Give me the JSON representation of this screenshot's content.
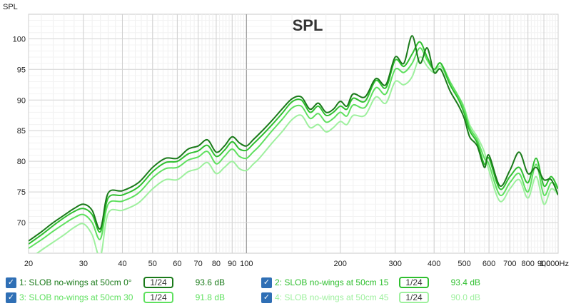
{
  "chart_data": {
    "type": "line",
    "title": "SPL",
    "ylabel": "SPL",
    "xlabel": "Hz",
    "xscale": "log",
    "xlim": [
      20,
      1000
    ],
    "ylim": [
      65,
      104
    ],
    "grid": true,
    "x_ticks": [
      20,
      30,
      40,
      50,
      60,
      70,
      80,
      90,
      100,
      200,
      300,
      400,
      500,
      600,
      700,
      800,
      900,
      1000
    ],
    "x_tick_labels": [
      "20",
      "30",
      "40",
      "50",
      "60",
      "70",
      "80",
      "90",
      "100",
      "200",
      "300",
      "400",
      "500",
      "600",
      "700",
      "800",
      "900",
      "1,000Hz"
    ],
    "y_ticks": [
      70,
      75,
      80,
      85,
      90,
      95,
      100
    ],
    "y_tick_labels": [
      "70",
      "75",
      "80",
      "85",
      "90",
      "95",
      "100"
    ],
    "series": [
      {
        "name": "1: SLOB no-wings at 50cm 0°",
        "color": "#1a7a1a",
        "x": [
          20,
          22,
          24,
          26,
          28,
          30,
          32,
          34,
          36,
          40,
          45,
          50,
          55,
          60,
          65,
          70,
          75,
          80,
          85,
          90,
          95,
          100,
          105,
          110,
          120,
          130,
          140,
          150,
          160,
          170,
          180,
          190,
          200,
          210,
          220,
          240,
          260,
          280,
          300,
          320,
          340,
          360,
          380,
          400,
          420,
          450,
          480,
          500,
          520,
          550,
          580,
          600,
          650,
          700,
          750,
          800,
          850,
          900,
          950,
          1000
        ],
        "y": [
          67,
          68.5,
          70,
          71.2,
          72.3,
          73,
          72,
          69,
          74.8,
          75.2,
          76.5,
          79,
          80.5,
          80.5,
          82,
          82.5,
          83.5,
          81.5,
          82.5,
          84,
          83,
          82.5,
          83.5,
          84.5,
          86.5,
          88.5,
          90.2,
          90.5,
          88.5,
          89.5,
          88,
          88.5,
          89.8,
          89,
          91,
          90.5,
          93.5,
          92.5,
          97,
          96,
          100.5,
          96,
          98.5,
          94.5,
          95,
          91.5,
          89,
          87,
          84,
          82.5,
          79,
          81,
          76,
          78.5,
          81.5,
          78,
          79,
          77,
          77,
          74.5
        ]
      },
      {
        "name": "2: SLOB no-wings at 50cm 15",
        "color": "#2fbf2f",
        "x": [
          20,
          22,
          24,
          26,
          28,
          30,
          32,
          34,
          36,
          40,
          45,
          50,
          55,
          60,
          65,
          70,
          75,
          80,
          85,
          90,
          95,
          100,
          105,
          110,
          120,
          130,
          140,
          150,
          160,
          170,
          180,
          190,
          200,
          210,
          220,
          240,
          260,
          280,
          300,
          320,
          340,
          360,
          380,
          400,
          420,
          450,
          480,
          500,
          520,
          550,
          580,
          600,
          650,
          700,
          750,
          800,
          850,
          900,
          950,
          1000
        ],
        "y": [
          66.5,
          68,
          69.5,
          70.8,
          71.8,
          72.3,
          71.3,
          68.5,
          74,
          74.5,
          75.8,
          78.3,
          79.8,
          80,
          81.2,
          81.7,
          82.6,
          80.8,
          81.8,
          83.2,
          82,
          81.8,
          82.8,
          83.8,
          85.8,
          87.8,
          89.7,
          90,
          88,
          89,
          87.5,
          88,
          89,
          88.5,
          90.3,
          89.8,
          93.2,
          92,
          96.5,
          95.5,
          97.5,
          99.5,
          97,
          95,
          96,
          92.5,
          90,
          87.8,
          85,
          83,
          79.5,
          80.5,
          75.5,
          77.5,
          79,
          76.5,
          80.5,
          76,
          77.5,
          75.5
        ]
      },
      {
        "name": "3: SLOB no-wings at 50cm 30",
        "color": "#5fe05f",
        "x": [
          20,
          22,
          24,
          26,
          28,
          30,
          32,
          34,
          36,
          40,
          45,
          50,
          55,
          60,
          65,
          70,
          75,
          80,
          85,
          90,
          95,
          100,
          105,
          110,
          120,
          130,
          140,
          150,
          160,
          170,
          180,
          190,
          200,
          210,
          220,
          240,
          260,
          280,
          300,
          320,
          340,
          360,
          380,
          400,
          420,
          450,
          480,
          500,
          520,
          550,
          580,
          600,
          650,
          700,
          750,
          800,
          850,
          900,
          950,
          1000
        ],
        "y": [
          65.8,
          67.2,
          68.6,
          69.8,
          70.8,
          71.3,
          70,
          67.3,
          73,
          73.5,
          74.8,
          77.3,
          78.8,
          79,
          80.2,
          80.7,
          81.6,
          79.6,
          80.8,
          82,
          80.8,
          80.5,
          81.5,
          82.5,
          84.8,
          86.8,
          88.7,
          89,
          87,
          87.8,
          86.4,
          87,
          88,
          87.4,
          89.2,
          88.8,
          92,
          91,
          95,
          94.5,
          96,
          98.5,
          96.5,
          95,
          96,
          93,
          90.5,
          88.5,
          85.5,
          83.5,
          80.5,
          79.5,
          74.5,
          76.5,
          78,
          75,
          79.5,
          74.5,
          76.5,
          75.5
        ]
      },
      {
        "name": "4: SLOB no-wings at 50cm 45",
        "color": "#9ef09e",
        "x": [
          20,
          22,
          24,
          26,
          28,
          30,
          32,
          34,
          36,
          40,
          45,
          50,
          55,
          60,
          65,
          70,
          75,
          80,
          85,
          90,
          95,
          100,
          105,
          110,
          120,
          130,
          140,
          150,
          160,
          170,
          180,
          190,
          200,
          210,
          220,
          240,
          260,
          280,
          300,
          320,
          340,
          360,
          380,
          400,
          420,
          450,
          480,
          500,
          520,
          550,
          580,
          600,
          650,
          700,
          750,
          800,
          850,
          900,
          950,
          1000
        ],
        "y": [
          64,
          65.5,
          66.8,
          68,
          69.2,
          69.8,
          68,
          64.5,
          71.5,
          72,
          73.2,
          75.5,
          77,
          77,
          78.3,
          78.8,
          79.8,
          78,
          79,
          80,
          78.8,
          78.5,
          79.5,
          80.5,
          82.8,
          84.8,
          86.8,
          87.5,
          85.5,
          86,
          84.8,
          85.5,
          86.5,
          86,
          87.5,
          87.5,
          90.5,
          89.5,
          93,
          92.5,
          93.8,
          97,
          95.5,
          94.5,
          95.5,
          92.5,
          90.5,
          88.8,
          86,
          84,
          81.5,
          78.5,
          73.5,
          75.5,
          77,
          74,
          77.5,
          73,
          75.5,
          74.5
        ]
      }
    ]
  },
  "legend": {
    "items": [
      {
        "label": "1: SLOB no-wings at 50cm 0°",
        "smoothing": "1/24",
        "value": "93.6 dB",
        "color": "#1a7a1a"
      },
      {
        "label": "2: SLOB no-wings at 50cm 15",
        "smoothing": "1/24",
        "value": "93.4 dB",
        "color": "#2fbf2f"
      },
      {
        "label": "3: SLOB no-wings at 50cm 30",
        "smoothing": "1/24",
        "value": "91.8 dB",
        "color": "#5fe05f"
      },
      {
        "label": "4: SLOB no-wings at 50cm 45",
        "smoothing": "1/24",
        "value": "90.0 dB",
        "color": "#9ef09e"
      }
    ],
    "checkbox_glyph": "✓"
  }
}
